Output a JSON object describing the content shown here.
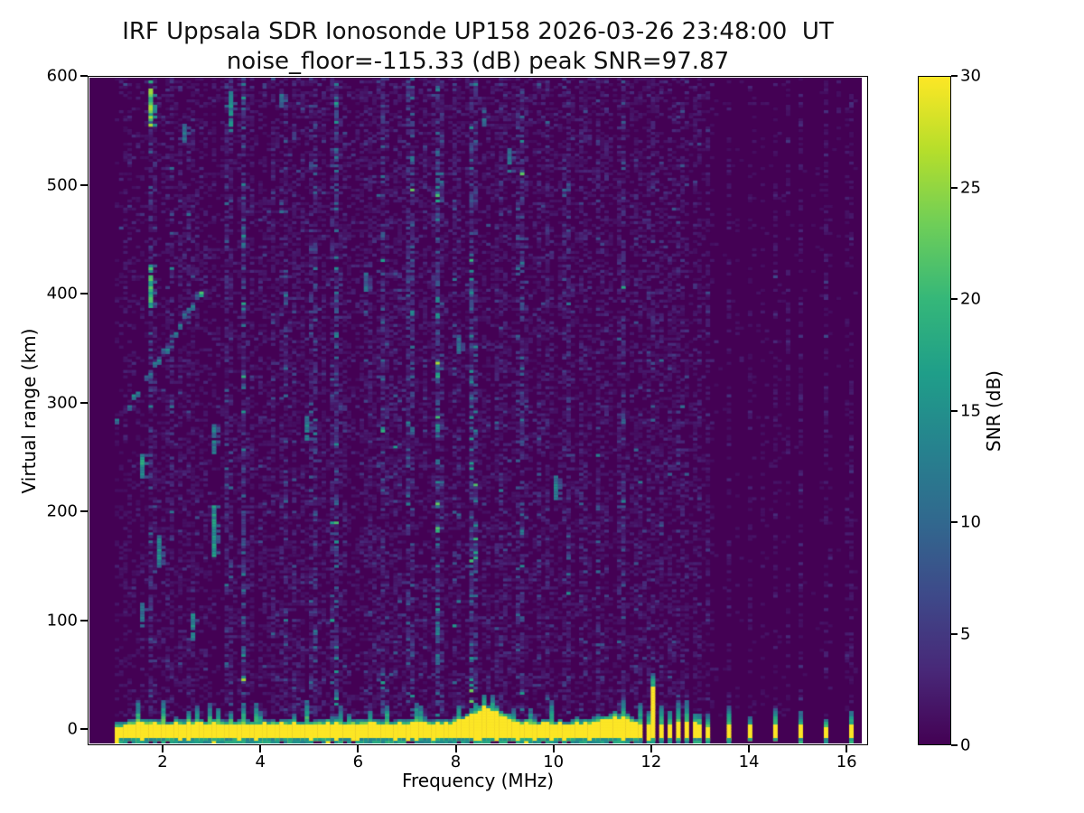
{
  "figure": {
    "background": "#ffffff"
  },
  "title": {
    "line1": "IRF Uppsala SDR Ionosonde UP158 2026-03-26 23:48:00  UT",
    "line2": "noise_floor=-115.33 (dB) peak SNR=97.87"
  },
  "chart_data": {
    "type": "heatmap",
    "title": "IRF Uppsala SDR Ionosonde UP158 2026-03-26 23:48:00  UT",
    "subtitle": "noise_floor=-115.33 (dB) peak SNR=97.87",
    "station": "UP158",
    "timestamp_ut": "2026-03-26 23:48:00",
    "noise_floor_db": -115.33,
    "peak_snr_db": 97.87,
    "xlabel": "Frequency (MHz)",
    "ylabel": "Virtual range (km)",
    "colorbar_label": "SNR (dB)",
    "xlim": [
      0.465,
      16.44
    ],
    "ylim": [
      -14.9,
      600
    ],
    "snr_range": [
      0,
      30
    ],
    "x_ticks": [
      2,
      4,
      6,
      8,
      10,
      12,
      14,
      16
    ],
    "y_ticks": [
      0,
      100,
      200,
      300,
      400,
      500,
      600
    ],
    "colorbar_ticks": [
      0,
      5,
      10,
      15,
      20,
      25,
      30
    ],
    "colormap": "viridis",
    "viridis_stops": [
      "#440154",
      "#482878",
      "#3e4989",
      "#31688e",
      "#26828e",
      "#1f9e89",
      "#35b779",
      "#6ece58",
      "#b5de2b",
      "#fde725"
    ],
    "grid": false,
    "legend": "colorbar-right",
    "data_f_min": 0.95,
    "data_f_max": 16.2,
    "ground_band": {
      "f_start": 0.95,
      "f_end": 11.66,
      "yellow_top_km_base": 5,
      "yellow_bottom_km": -6.5,
      "snr": 30,
      "bump": {
        "center_mhz": 8.62,
        "sigma_mhz": 0.42,
        "amp_km": 14
      },
      "bump2": {
        "center_mhz": 11.25,
        "sigma_mhz": 0.35,
        "amp_km": 6
      },
      "spike": {
        "f_mhz": 8.55,
        "yellow_top_km": 22,
        "teal_top_km": 34
      },
      "underline_km": [
        -7,
        -9.5
      ],
      "underline_snr": 15
    },
    "bar_cluster": {
      "start_mhz": 11.72,
      "spacing_mhz": 0.158,
      "count": 10,
      "width_mhz": 0.085,
      "tall_bar_index": 2,
      "tall_yellow_top_km": 40,
      "tall_teal_top_km": 54,
      "yellow_top_km": 7,
      "yellow_bottom_km": -7
    },
    "isolated_bars_mhz": [
      13.52,
      14.02,
      14.52,
      15.04,
      15.55,
      16.05
    ],
    "echo_trace": {
      "f_start": 1.05,
      "f_end": 2.78,
      "km_at_start": 287,
      "slope_km_per_mhz": 62,
      "curve_km_per_mhz2": 4,
      "snr_min": 9,
      "snr_max": 22
    },
    "echo_streaks": [
      [
        1.74,
        558,
        600,
        22
      ],
      [
        3.32,
        552,
        588,
        14
      ],
      [
        1.71,
        390,
        428,
        19
      ],
      [
        1.57,
        235,
        258,
        16
      ],
      [
        3.05,
        258,
        283,
        13
      ],
      [
        3.03,
        162,
        207,
        15
      ],
      [
        1.85,
        152,
        180,
        13
      ],
      [
        2.54,
        83,
        110,
        13
      ],
      [
        1.57,
        97,
        118,
        12
      ],
      [
        4.92,
        270,
        290,
        12
      ],
      [
        2.4,
        543,
        560,
        11
      ],
      [
        9.1,
        515,
        535,
        11
      ],
      [
        10.0,
        215,
        235,
        12
      ],
      [
        8.0,
        350,
        365,
        10
      ],
      [
        6.1,
        405,
        420,
        10
      ],
      [
        4.4,
        575,
        590,
        11
      ],
      [
        8.55,
        555,
        572,
        11
      ]
    ],
    "rfi_columns_mhz": [
      1.75,
      2.12,
      3.3,
      3.62,
      4.45,
      5.05,
      5.5,
      6.45,
      7.05,
      7.62,
      8.3,
      9.35,
      10.3,
      10.9,
      11.35
    ],
    "weak_rfi_columns_mhz": [
      13.27,
      13.77,
      14.27,
      14.77,
      15.29,
      15.8
    ]
  },
  "rng_seed": 1337
}
